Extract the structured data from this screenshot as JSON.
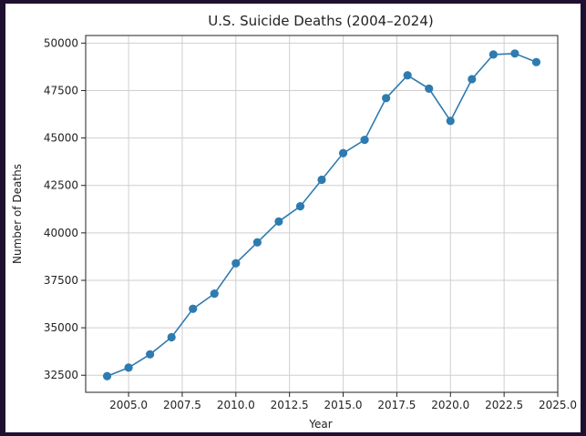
{
  "chart_data": {
    "type": "line",
    "title": "U.S. Suicide Deaths (2004–2024)",
    "xlabel": "Year",
    "ylabel": "Number of Deaths",
    "xlim": [
      2003.0,
      2025.0
    ],
    "ylim": [
      31600,
      50400
    ],
    "xticks": [
      2005.0,
      2007.5,
      2010.0,
      2012.5,
      2015.0,
      2017.5,
      2020.0,
      2022.5,
      2025.0
    ],
    "xtick_labels": [
      "2005.0",
      "2007.5",
      "2010.0",
      "2012.5",
      "2015.0",
      "2017.5",
      "2020.0",
      "2022.5",
      "2025.0"
    ],
    "yticks": [
      32500,
      35000,
      37500,
      40000,
      42500,
      45000,
      47500,
      50000
    ],
    "ytick_labels": [
      "32500",
      "35000",
      "37500",
      "40000",
      "42500",
      "45000",
      "47500",
      "50000"
    ],
    "grid": true,
    "series": [
      {
        "color": "#2e7bb0",
        "marker": "circle",
        "x": [
          2004,
          2005,
          2006,
          2007,
          2008,
          2009,
          2010,
          2011,
          2012,
          2013,
          2014,
          2015,
          2016,
          2017,
          2018,
          2019,
          2020,
          2021,
          2022,
          2023,
          2024
        ],
        "y": [
          32450,
          32900,
          33600,
          34500,
          36000,
          36800,
          38400,
          39500,
          40600,
          41400,
          42800,
          44200,
          44900,
          47100,
          48300,
          47600,
          45900,
          48100,
          49400,
          49450,
          49000
        ]
      }
    ]
  }
}
